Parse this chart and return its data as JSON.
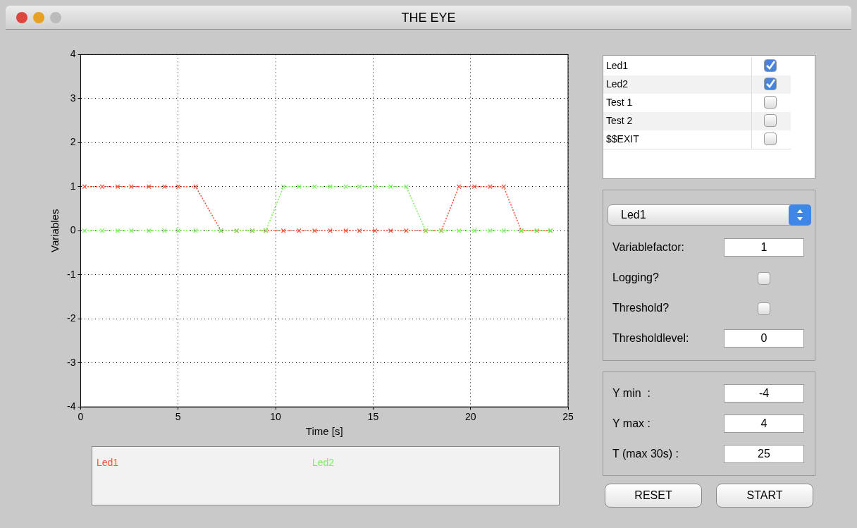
{
  "chart_data": {
    "type": "line",
    "title": "THE EYE",
    "xlabel": "Time [s]",
    "ylabel": "Variables",
    "x": [
      0.2,
      1.1,
      1.9,
      2.6,
      3.5,
      4.3,
      5.0,
      5.9,
      7.2,
      8.0,
      8.8,
      9.5,
      10.4,
      11.2,
      12.0,
      12.8,
      13.6,
      14.3,
      15.1,
      15.9,
      16.7,
      17.7,
      18.5,
      19.4,
      20.2,
      21.0,
      21.7,
      22.6,
      23.4,
      24.1
    ],
    "series": [
      {
        "name": "Led1",
        "color": "#f4503c",
        "values": [
          1,
          1,
          1,
          1,
          1,
          1,
          1,
          1,
          0,
          0,
          0,
          0,
          0,
          0,
          0,
          0,
          0,
          0,
          0,
          0,
          0,
          0,
          0,
          1,
          1,
          1,
          1,
          0,
          0,
          0
        ]
      },
      {
        "name": "Led2",
        "color": "#7af05a",
        "values": [
          0,
          0,
          0,
          0,
          0,
          0,
          0,
          0,
          0,
          0,
          0,
          0,
          1,
          1,
          1,
          1,
          1,
          1,
          1,
          1,
          1,
          0,
          0,
          0,
          0,
          0,
          0,
          0,
          0,
          0
        ]
      }
    ],
    "xlim": [
      0,
      25
    ],
    "xticks": [
      0,
      5,
      10,
      15,
      20,
      25
    ],
    "ylim": [
      -4,
      4
    ],
    "yticks": [
      -4,
      -3,
      -2,
      -1,
      0,
      1,
      2,
      3,
      4
    ],
    "grid": true,
    "legend": "bottom",
    "marker": "cross",
    "line_style": "dotted",
    "annotations": [
      "Led1",
      "Led2",
      "Test 1",
      "Test 2",
      "$$EXIT",
      "Led1",
      "Variablefactor:",
      "1",
      "Logging?",
      "Threshold?",
      "Thresholdlevel:",
      "0",
      "Y min  :",
      "-4",
      "Y max :",
      "4",
      "T (max 30s) :",
      "25",
      "RESET",
      "START"
    ]
  }
}
